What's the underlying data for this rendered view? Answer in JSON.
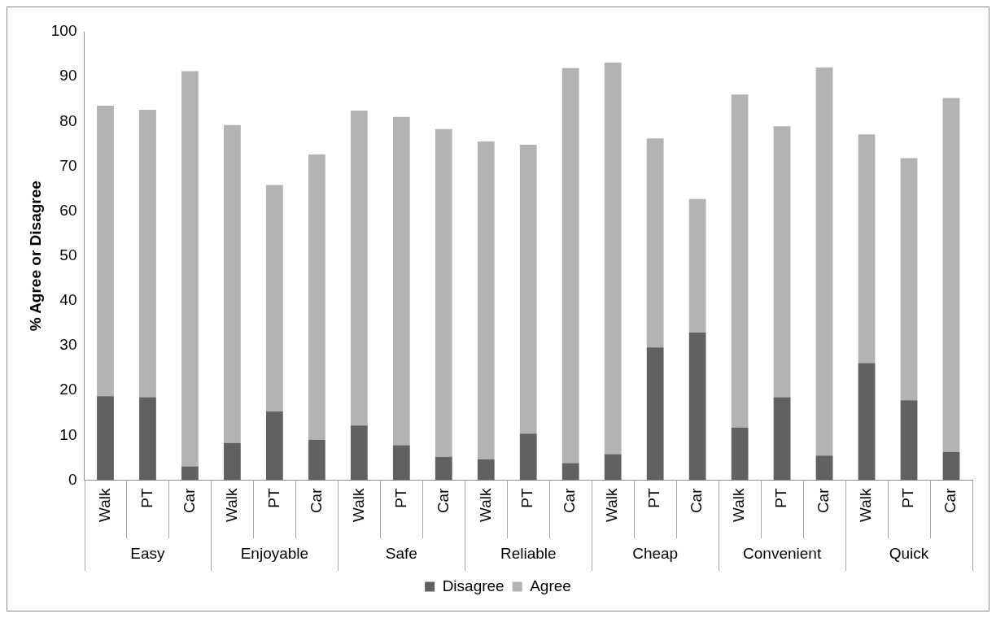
{
  "chart_data": {
    "type": "bar",
    "stacked": true,
    "ylabel": "% Agree or Disagree",
    "categories": [
      "Walk",
      "PT",
      "Car",
      "Walk",
      "PT",
      "Car",
      "Walk",
      "PT",
      "Car",
      "Walk",
      "PT",
      "Car",
      "Walk",
      "PT",
      "Car",
      "Walk",
      "PT",
      "Car",
      "Walk",
      "PT",
      "Car"
    ],
    "annotations": [
      "Easy",
      "Enjoyable",
      "Safe",
      "Reliable",
      "Cheap",
      "Convenient",
      "Quick"
    ],
    "series": [
      {
        "name": "Disagree",
        "color": "#616161",
        "values": [
          18.7,
          18.5,
          3.1,
          8.3,
          15.3,
          9.0,
          12.2,
          7.8,
          5.2,
          4.6,
          10.4,
          3.8,
          5.8,
          29.6,
          32.9,
          11.7,
          18.5,
          5.5,
          26.1,
          17.8,
          6.3
        ]
      },
      {
        "name": "Agree",
        "color": "#b3b3b3",
        "values": [
          64.8,
          64.1,
          88.1,
          70.9,
          50.5,
          63.6,
          70.2,
          73.2,
          73.1,
          70.9,
          64.4,
          88.1,
          87.3,
          46.6,
          29.8,
          74.3,
          60.4,
          86.5,
          51.0,
          54.0,
          78.9
        ]
      }
    ],
    "ylim": [
      0,
      100
    ],
    "yticks": [
      0,
      10,
      20,
      30,
      40,
      50,
      60,
      70,
      80,
      90,
      100
    ],
    "grid": false,
    "legend": "bottom"
  }
}
